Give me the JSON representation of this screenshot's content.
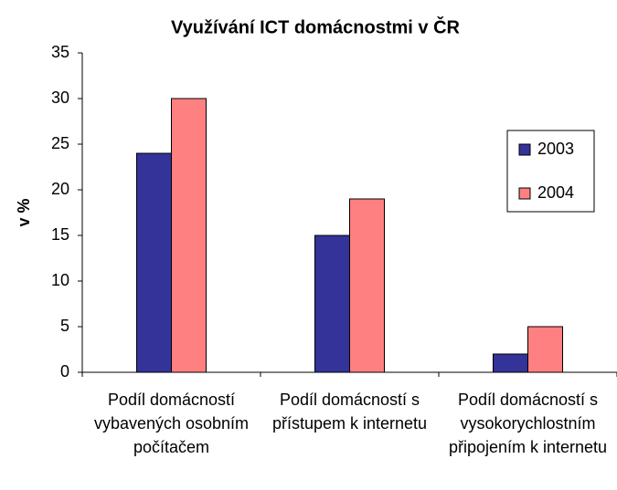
{
  "chart_data": {
    "type": "bar",
    "title": "Využívání ICT domácnostmi v ČR",
    "y_label": "v %",
    "categories": [
      "Podíl domácností vybavených osobním počítačem",
      "Podíl domácností s přístupem k internetu",
      "Podíl domácností s vysokorychlostním připojením k internetu"
    ],
    "series": [
      {
        "name": "2003",
        "color": "#333399",
        "values": [
          24,
          15,
          2
        ]
      },
      {
        "name": "2004",
        "color": "#ff8080",
        "values": [
          30,
          19,
          5
        ]
      }
    ],
    "ylim": [
      0,
      35
    ],
    "yticks": [
      0,
      5,
      10,
      15,
      20,
      25,
      30,
      35
    ],
    "grid": false,
    "legend": "right"
  }
}
